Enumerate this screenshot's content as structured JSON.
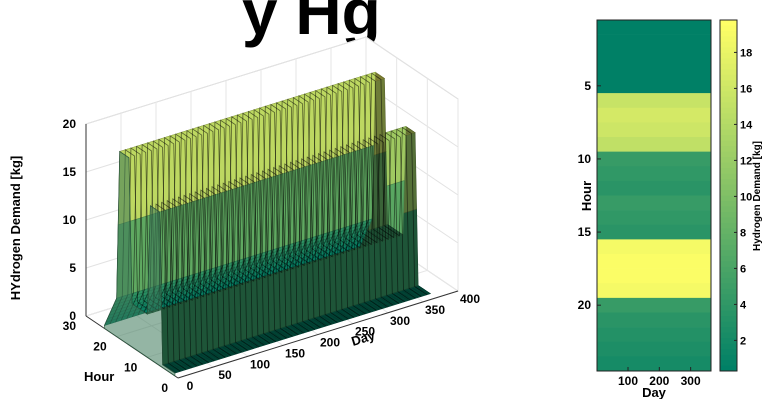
{
  "title_fragment": "y Hg",
  "chart_data": [
    {
      "type": "surface",
      "zlabel": "HYdrogen Demand [kg]",
      "xlabel": "Day",
      "ylabel": "Hour",
      "xlim": [
        0,
        400
      ],
      "ylim": [
        0,
        30
      ],
      "zlim": [
        0,
        20
      ],
      "x_ticks": [
        0,
        50,
        100,
        150,
        200,
        250,
        300,
        350,
        400
      ],
      "y_ticks": [
        0,
        10,
        20,
        30
      ],
      "z_ticks": [
        0,
        5,
        10,
        15,
        20
      ],
      "hour_profile": [
        {
          "hour": 1,
          "value": 0.3
        },
        {
          "hour": 5,
          "value": 0.3
        },
        {
          "hour": 6,
          "value": 16.0
        },
        {
          "hour": 9,
          "value": 16.0
        },
        {
          "hour": 10,
          "value": 4.5
        },
        {
          "hour": 15,
          "value": 4.5
        },
        {
          "hour": 16,
          "value": 19.5
        },
        {
          "hour": 19,
          "value": 19.5
        },
        {
          "hour": 20,
          "value": 4.0
        },
        {
          "hour": 24,
          "value": 0.3
        }
      ],
      "days": 365,
      "colormap": "summer",
      "grid": true
    },
    {
      "type": "heatmap",
      "xlabel": "Day",
      "ylabel": "Hour",
      "x_ticks": [
        100,
        200,
        300
      ],
      "y_ticks": [
        5,
        10,
        15,
        20
      ],
      "xlim": [
        1,
        365
      ],
      "ylim": [
        0.5,
        24.5
      ],
      "hours": [
        1,
        2,
        3,
        4,
        5,
        6,
        7,
        8,
        9,
        10,
        11,
        12,
        13,
        14,
        15,
        16,
        17,
        18,
        19,
        20,
        21,
        22,
        23,
        24
      ],
      "values": [
        0.3,
        0.3,
        0.3,
        0.3,
        0.3,
        15.5,
        16.5,
        16.0,
        15.0,
        4.5,
        4.0,
        3.5,
        4.5,
        4.0,
        3.5,
        19.0,
        19.5,
        19.5,
        19.0,
        4.5,
        3.5,
        3.0,
        2.5,
        2.0
      ],
      "colorbar": {
        "label": "Hydrogen Demand [kg]",
        "ticks": [
          2,
          4,
          6,
          8,
          10,
          12,
          14,
          16,
          18
        ],
        "range": [
          0.3,
          19.8
        ]
      },
      "colormap": "summer"
    }
  ]
}
